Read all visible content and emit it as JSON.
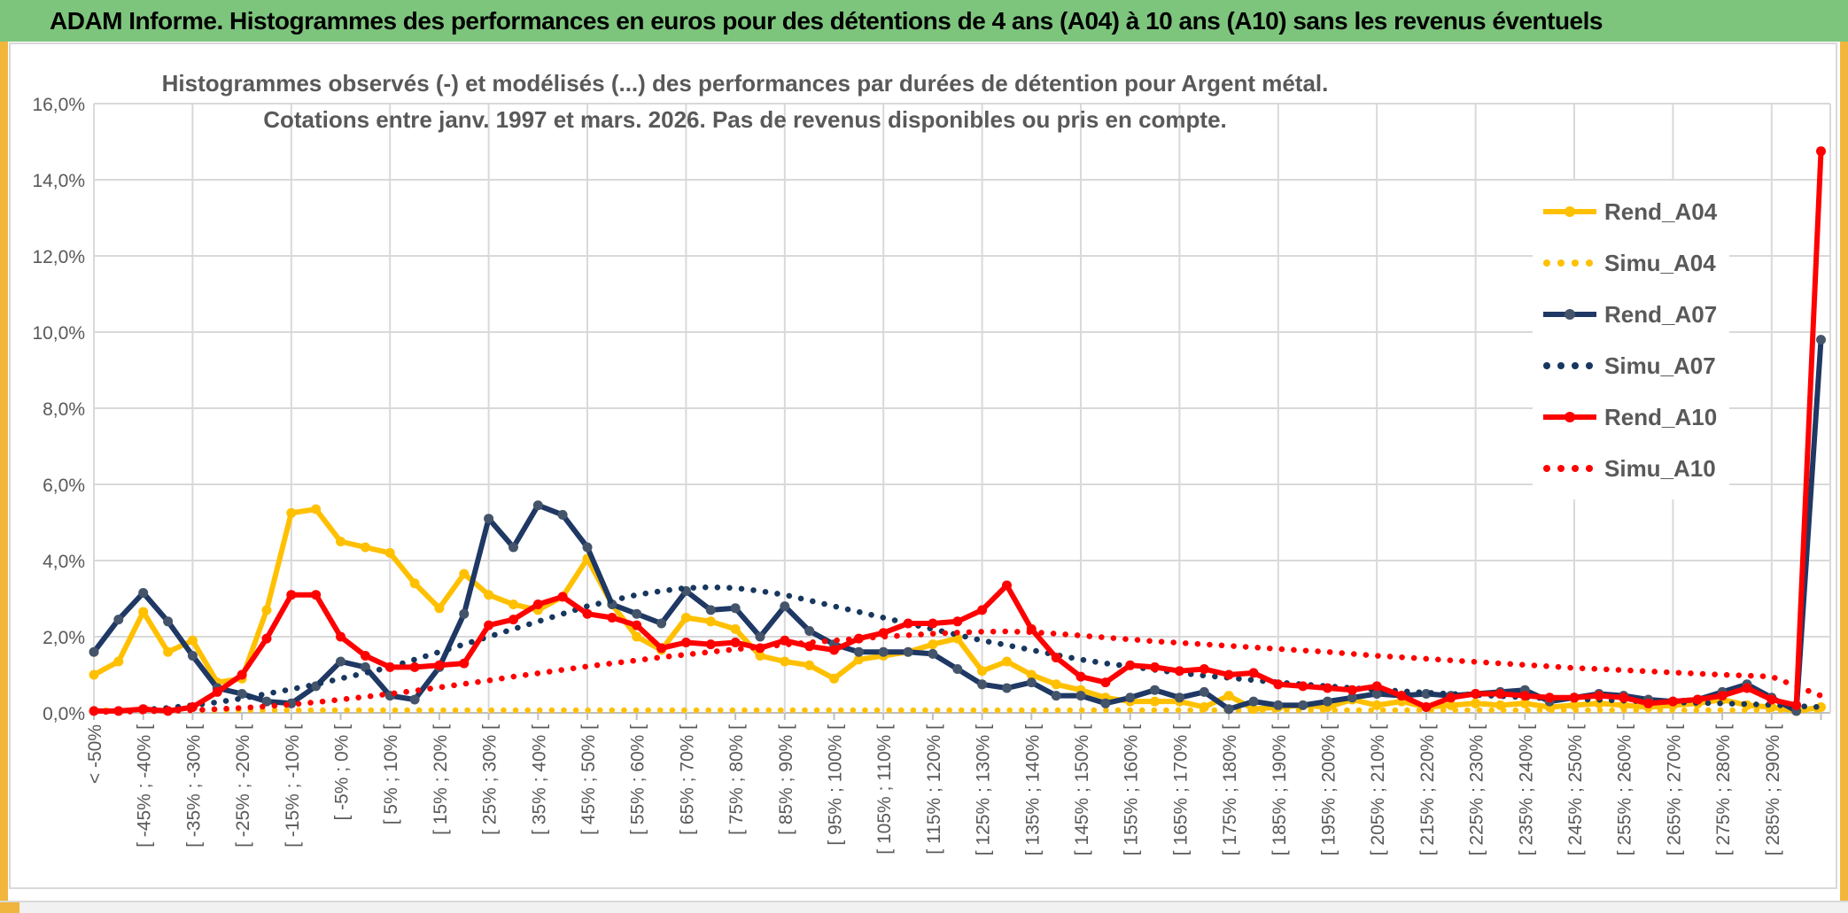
{
  "window_title": "ADAM Informe. Histogrammes des performances en euros pour des détentions de 4 ans (A04) à 10 ans (A10) sans les revenus éventuels",
  "chart": {
    "title_line1": "Histogrammes observés (-) et modélisés (...) des performances par durées de détention pour Argent métal.",
    "title_line2": "Cotations entre janv. 1997 et mars. 2026. Pas de revenus disponibles ou pris en compte.",
    "y_axis_ticks": [
      "16,0%",
      "14,0%",
      "12,0%",
      "10,0%",
      "8,0%",
      "6,0%",
      "4,0%",
      "2,0%",
      "0,0%"
    ],
    "legend_position": "right-inside"
  },
  "chart_data": {
    "type": "line",
    "note": "Histogram of holding-period performances; 71 bins of 5% width from < -50% to >= 290%; axis labels shown for every other bin; grid on",
    "ylim_percent": [
      0,
      16
    ],
    "x_labels": [
      "< -50%",
      "[ -45% ; -40% [",
      "[ -35% ; -30% [",
      "[ -25% ; -20% [",
      "[ -15% ; -10% [",
      "[ -5% ; 0% [",
      "[ 5% ; 10% [",
      "[ 15% ; 20% [",
      "[ 25% ; 30% [",
      "[ 35% ; 40% [",
      "[ 45% ; 50% [",
      "[ 55% ; 60% [",
      "[ 65% ; 70% [",
      "[ 75% ; 80% [",
      "[ 85% ; 90% [",
      "[ 95% ; 100% [",
      "[ 105% ; 110% [",
      "[ 115% ; 120% [",
      "[ 125% ; 130% [",
      "[ 135% ; 140% [",
      "[ 145% ; 150% [",
      "[ 155% ; 160% [",
      "[ 165% ; 170% [",
      "[ 175% ; 180% [",
      "[ 185% ; 190% [",
      "[ 195% ; 200% [",
      "[ 205% ; 210% [",
      "[ 215% ; 220% [",
      "[ 225% ; 230% [",
      "[ 235% ; 240% [",
      "[ 245% ; 250% [",
      "[ 255% ; 260% [",
      "[ 265% ; 270% [",
      "[ 275% ; 280% [",
      "[ 285% ; 290% ["
    ],
    "series": [
      {
        "name": "Rend_A04",
        "style": "solid",
        "color": "#FFC000",
        "marker_color": "#FFC000",
        "values": [
          1.0,
          1.35,
          2.65,
          1.6,
          1.9,
          0.8,
          0.9,
          2.7,
          5.25,
          5.35,
          4.5,
          4.35,
          4.2,
          3.4,
          2.75,
          3.65,
          3.1,
          2.85,
          2.7,
          3.05,
          4.05,
          2.85,
          2.0,
          1.65,
          2.5,
          2.4,
          2.2,
          1.5,
          1.35,
          1.25,
          0.9,
          1.4,
          1.5,
          1.6,
          1.8,
          1.95,
          1.1,
          1.35,
          1.0,
          0.75,
          0.6,
          0.4,
          0.3,
          0.3,
          0.3,
          0.15,
          0.45,
          0.1,
          0.15,
          0.2,
          0.15,
          0.35,
          0.2,
          0.3,
          0.15,
          0.2,
          0.25,
          0.2,
          0.25,
          0.15,
          0.2,
          0.25,
          0.2,
          0.15,
          0.2,
          0.25,
          0.35,
          0.2,
          0.15,
          0.05,
          0.15
        ]
      },
      {
        "name": "Simu_A04",
        "style": "dotted",
        "color": "#FFC000",
        "values": [
          0.07,
          0.07,
          0.07,
          0.07,
          0.07,
          0.07,
          0.07,
          0.07,
          0.07,
          0.07,
          0.07,
          0.07,
          0.07,
          0.07,
          0.07,
          0.07,
          0.07,
          0.07,
          0.07,
          0.07,
          0.07,
          0.07,
          0.07,
          0.07,
          0.07,
          0.07,
          0.07,
          0.07,
          0.07,
          0.07,
          0.07,
          0.07,
          0.07,
          0.07,
          0.07,
          0.07,
          0.07,
          0.07,
          0.07,
          0.07,
          0.07,
          0.07,
          0.07,
          0.07,
          0.07,
          0.07,
          0.07,
          0.07,
          0.07,
          0.07,
          0.07,
          0.07,
          0.07,
          0.07,
          0.07,
          0.07,
          0.07,
          0.07,
          0.07,
          0.07,
          0.07,
          0.07,
          0.07,
          0.07,
          0.07,
          0.07,
          0.07,
          0.07,
          0.07,
          0.07,
          0.07
        ]
      },
      {
        "name": "Rend_A07",
        "style": "solid",
        "color": "#1F3864",
        "marker_color": "#44546A",
        "values": [
          1.6,
          2.45,
          3.15,
          2.4,
          1.5,
          0.65,
          0.5,
          0.3,
          0.25,
          0.7,
          1.35,
          1.2,
          0.45,
          0.35,
          1.2,
          2.6,
          5.1,
          4.35,
          5.45,
          5.2,
          4.35,
          2.85,
          2.6,
          2.35,
          3.2,
          2.7,
          2.75,
          2.0,
          2.8,
          2.15,
          1.8,
          1.6,
          1.6,
          1.6,
          1.55,
          1.15,
          0.75,
          0.65,
          0.8,
          0.45,
          0.45,
          0.25,
          0.4,
          0.6,
          0.4,
          0.55,
          0.1,
          0.3,
          0.2,
          0.2,
          0.3,
          0.4,
          0.5,
          0.45,
          0.5,
          0.45,
          0.5,
          0.55,
          0.6,
          0.3,
          0.4,
          0.5,
          0.45,
          0.35,
          0.3,
          0.35,
          0.55,
          0.75,
          0.4,
          0.05,
          9.8
        ]
      },
      {
        "name": "Simu_A07",
        "style": "dotted",
        "color": "#17375E",
        "values": [
          0.02,
          0.04,
          0.08,
          0.13,
          0.2,
          0.28,
          0.38,
          0.5,
          0.62,
          0.75,
          0.9,
          1.05,
          1.2,
          1.4,
          1.6,
          1.8,
          2.0,
          2.2,
          2.4,
          2.6,
          2.8,
          2.95,
          3.1,
          3.2,
          3.28,
          3.3,
          3.28,
          3.2,
          3.1,
          2.95,
          2.8,
          2.65,
          2.5,
          2.35,
          2.2,
          2.05,
          1.9,
          1.78,
          1.65,
          1.52,
          1.4,
          1.3,
          1.22,
          1.13,
          1.05,
          0.98,
          0.92,
          0.86,
          0.8,
          0.75,
          0.7,
          0.65,
          0.61,
          0.57,
          0.53,
          0.5,
          0.47,
          0.44,
          0.41,
          0.38,
          0.36,
          0.34,
          0.32,
          0.3,
          0.28,
          0.26,
          0.25,
          0.23,
          0.21,
          0.18,
          0.15
        ]
      },
      {
        "name": "Rend_A10",
        "style": "solid",
        "color": "#FF0000",
        "marker_color": "#FF0000",
        "values": [
          0.05,
          0.05,
          0.1,
          0.05,
          0.15,
          0.55,
          1.0,
          1.95,
          3.1,
          3.1,
          2.0,
          1.5,
          1.2,
          1.2,
          1.25,
          1.3,
          2.3,
          2.45,
          2.85,
          3.05,
          2.6,
          2.5,
          2.3,
          1.7,
          1.85,
          1.8,
          1.85,
          1.7,
          1.9,
          1.75,
          1.65,
          1.95,
          2.1,
          2.35,
          2.35,
          2.4,
          2.7,
          3.35,
          2.2,
          1.45,
          0.95,
          0.8,
          1.25,
          1.2,
          1.1,
          1.15,
          1.0,
          1.05,
          0.75,
          0.7,
          0.65,
          0.6,
          0.7,
          0.45,
          0.15,
          0.4,
          0.5,
          0.5,
          0.45,
          0.4,
          0.4,
          0.45,
          0.4,
          0.25,
          0.3,
          0.35,
          0.45,
          0.65,
          0.35,
          0.2,
          14.75
        ]
      },
      {
        "name": "Simu_A10",
        "style": "dotted",
        "color": "#FF0000",
        "values": [
          0.02,
          0.03,
          0.04,
          0.05,
          0.07,
          0.1,
          0.13,
          0.17,
          0.22,
          0.28,
          0.35,
          0.42,
          0.5,
          0.58,
          0.67,
          0.76,
          0.85,
          0.95,
          1.04,
          1.13,
          1.22,
          1.3,
          1.38,
          1.46,
          1.53,
          1.6,
          1.67,
          1.73,
          1.79,
          1.85,
          1.9,
          1.95,
          2.0,
          2.04,
          2.08,
          2.11,
          2.13,
          2.14,
          2.12,
          2.08,
          2.03,
          1.98,
          1.93,
          1.88,
          1.84,
          1.8,
          1.76,
          1.72,
          1.68,
          1.64,
          1.6,
          1.55,
          1.5,
          1.46,
          1.42,
          1.38,
          1.34,
          1.3,
          1.26,
          1.22,
          1.18,
          1.15,
          1.12,
          1.09,
          1.06,
          1.03,
          1.0,
          0.98,
          0.95,
          0.7,
          0.45
        ]
      }
    ]
  },
  "colors": {
    "titlebar_bg": "#7DC57D",
    "titlebar_text": "#000000",
    "axis_text": "#595959",
    "grid": "#D9D9D9",
    "axis_line": "#BFBFBF",
    "edge_accent": "#F2B63C",
    "gold": "#FFC000",
    "navy": "#1F3864",
    "navy_marker": "#44546A",
    "red": "#FF0000"
  }
}
